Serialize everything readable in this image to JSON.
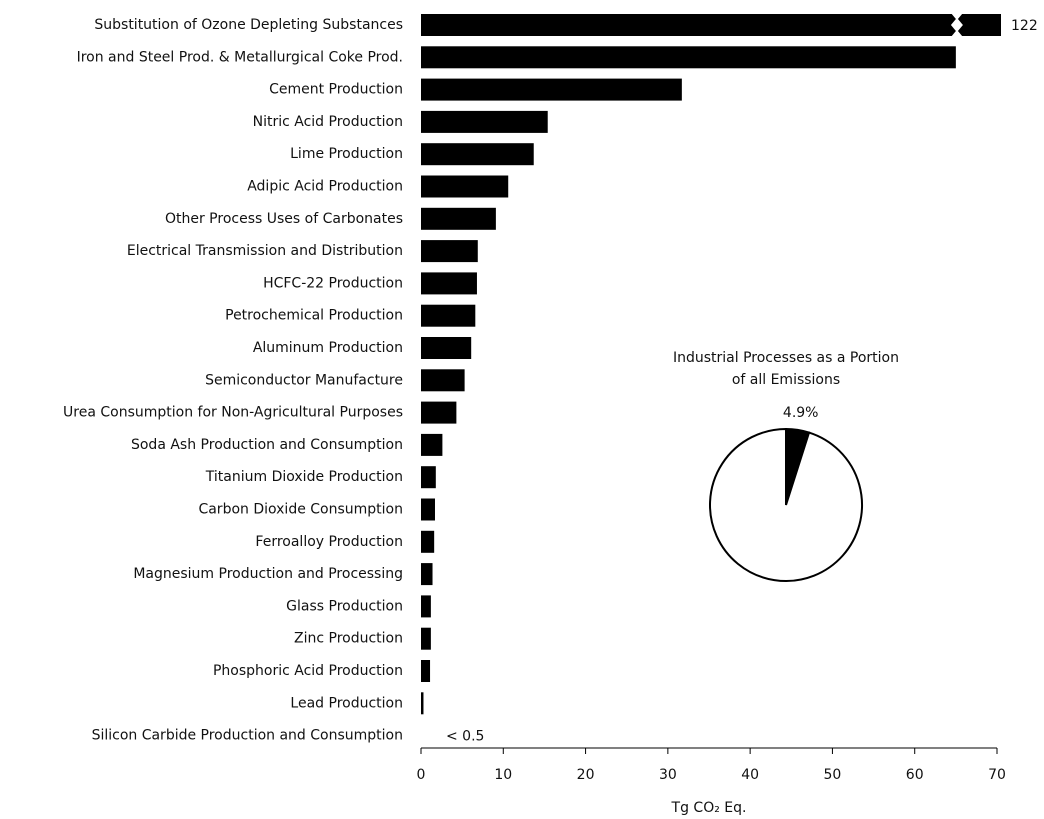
{
  "chart_data": [
    {
      "type": "hbar",
      "x_label": "Tg CO₂ Eq.",
      "categories": [
        "Substitution of Ozone Depleting Substances",
        "Iron and Steel Prod. & Metallurgical Coke Prod.",
        "Cement Production",
        "Nitric Acid Production",
        "Lime Production",
        "Adipic Acid Production",
        "Other Process Uses of Carbonates",
        "Electrical Transmission and Distribution",
        "HCFC-22 Production",
        "Petrochemical Production",
        "Aluminum Production",
        "Semiconductor Manufacture",
        "Urea Consumption for Non-Agricultural Purposes",
        "Soda Ash Production and Consumption",
        "Titanium Dioxide Production",
        "Carbon Dioxide Consumption",
        "Ferroalloy Production",
        "Magnesium Production and Processing",
        "Glass Production",
        "Zinc Production",
        "Phosphoric Acid Production",
        "Lead Production",
        "Silicon Carbide Production and Consumption"
      ],
      "values": [
        122,
        65,
        31.7,
        15.4,
        13.7,
        10.6,
        9.1,
        6.9,
        6.8,
        6.6,
        6.1,
        5.3,
        4.3,
        2.6,
        1.8,
        1.7,
        1.6,
        1.4,
        1.2,
        1.2,
        1.1,
        0.3,
        null
      ],
      "value_labels": [
        "122",
        null,
        null,
        null,
        null,
        null,
        null,
        null,
        null,
        null,
        null,
        null,
        null,
        null,
        null,
        null,
        null,
        null,
        null,
        null,
        null,
        null,
        "< 0.5"
      ],
      "color": "#000000",
      "xlim": [
        0,
        70
      ],
      "xticks": [
        0,
        10,
        20,
        30,
        40,
        50,
        60,
        70
      ]
    },
    {
      "type": "pie",
      "title": [
        "Industrial Processes as a Portion",
        "of all Emissions"
      ],
      "values": [
        4.9,
        95.1
      ],
      "value_labels": [
        "4.9%",
        null
      ],
      "colors": [
        "#000000",
        "#ffffff"
      ]
    }
  ]
}
